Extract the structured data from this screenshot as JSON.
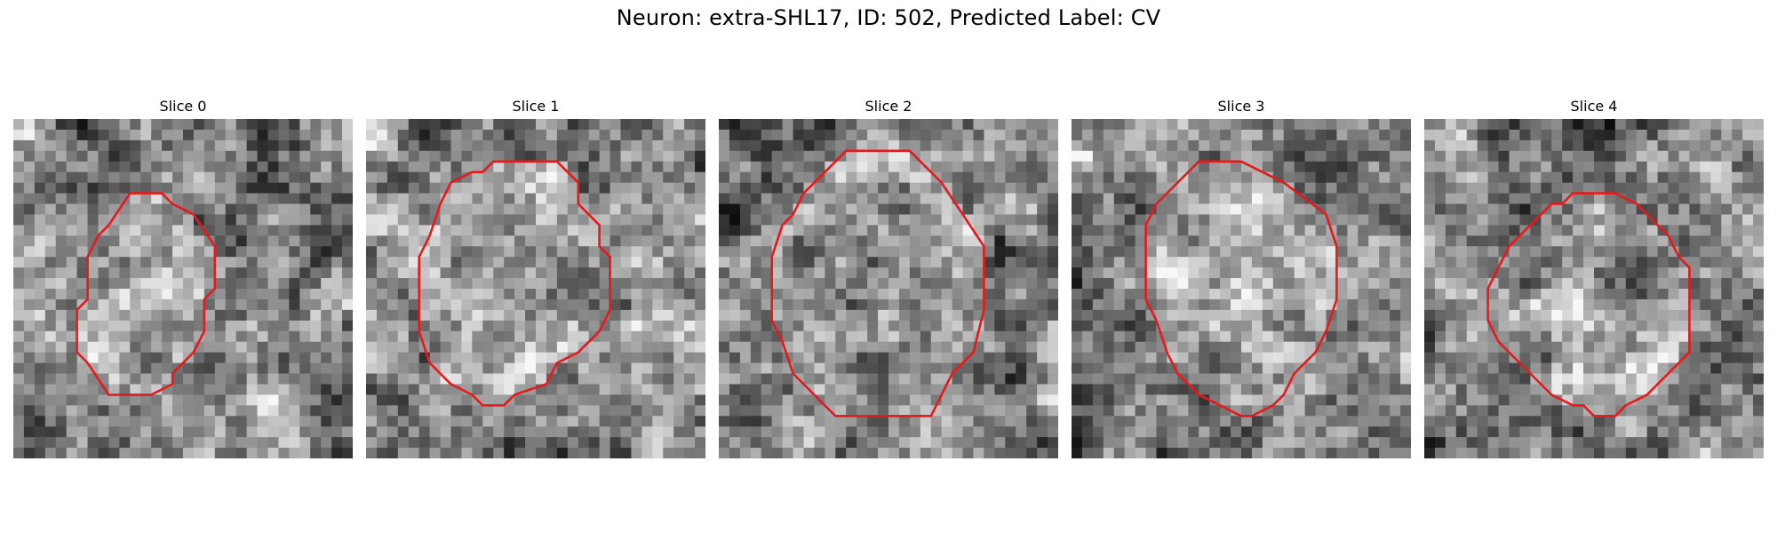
{
  "figure": {
    "title": "Neuron: extra-SHL17, ID: 502, Predicted Label: CV"
  },
  "colors": {
    "contour": "#e41a1c",
    "background": "#ffffff"
  },
  "slices": [
    {
      "label": "Slice 0",
      "grid": "32x32",
      "contour": [
        [
          11,
          7
        ],
        [
          14,
          7
        ],
        [
          15,
          8
        ],
        [
          17,
          9
        ],
        [
          19,
          12
        ],
        [
          19,
          16
        ],
        [
          18,
          17
        ],
        [
          18,
          20
        ],
        [
          17,
          22
        ],
        [
          15,
          24
        ],
        [
          15,
          25
        ],
        [
          13,
          26
        ],
        [
          9,
          26
        ],
        [
          7,
          23
        ],
        [
          6,
          22
        ],
        [
          6,
          19
        ],
        [
          6,
          18
        ],
        [
          7,
          17
        ],
        [
          7,
          13
        ],
        [
          8,
          11
        ],
        [
          9,
          10
        ]
      ]
    },
    {
      "label": "Slice 1",
      "grid": "32x32",
      "contour": [
        [
          12,
          4
        ],
        [
          18,
          4
        ],
        [
          20,
          6
        ],
        [
          20,
          8
        ],
        [
          22,
          10
        ],
        [
          22,
          12
        ],
        [
          23,
          13
        ],
        [
          23,
          18
        ],
        [
          22,
          20
        ],
        [
          20,
          22
        ],
        [
          18,
          23
        ],
        [
          17,
          25
        ],
        [
          14,
          26
        ],
        [
          13,
          27
        ],
        [
          11,
          27
        ],
        [
          10,
          26
        ],
        [
          8,
          25
        ],
        [
          6,
          23
        ],
        [
          5,
          20
        ],
        [
          5,
          13
        ],
        [
          6,
          11
        ],
        [
          7,
          8
        ],
        [
          8,
          6
        ],
        [
          10,
          5
        ],
        [
          11,
          5
        ]
      ]
    },
    {
      "label": "Slice 2",
      "grid": "32x32",
      "contour": [
        [
          12,
          3
        ],
        [
          18,
          3
        ],
        [
          20,
          5
        ],
        [
          21,
          6
        ],
        [
          23,
          9
        ],
        [
          25,
          12
        ],
        [
          25,
          18
        ],
        [
          24,
          22
        ],
        [
          22,
          24
        ],
        [
          21,
          26
        ],
        [
          20,
          28
        ],
        [
          11,
          28
        ],
        [
          9,
          26
        ],
        [
          7,
          24
        ],
        [
          6,
          21
        ],
        [
          5,
          19
        ],
        [
          5,
          13
        ],
        [
          6,
          10
        ],
        [
          7,
          9
        ],
        [
          8,
          7
        ],
        [
          10,
          5
        ]
      ]
    },
    {
      "label": "Slice 3",
      "grid": "32x32",
      "contour": [
        [
          12,
          4
        ],
        [
          16,
          4
        ],
        [
          18,
          5
        ],
        [
          20,
          6
        ],
        [
          24,
          9
        ],
        [
          25,
          12
        ],
        [
          25,
          17
        ],
        [
          24,
          20
        ],
        [
          23,
          22
        ],
        [
          21,
          24
        ],
        [
          20,
          26
        ],
        [
          19,
          27
        ],
        [
          17,
          28
        ],
        [
          16,
          28
        ],
        [
          14,
          27
        ],
        [
          12,
          26
        ],
        [
          10,
          24
        ],
        [
          9,
          22
        ],
        [
          8,
          19
        ],
        [
          7,
          17
        ],
        [
          7,
          10
        ],
        [
          8,
          8
        ],
        [
          11,
          5
        ]
      ]
    },
    {
      "label": "Slice 4",
      "grid": "32x32",
      "contour": [
        [
          14,
          7
        ],
        [
          18,
          7
        ],
        [
          20,
          8
        ],
        [
          21,
          9
        ],
        [
          22,
          10
        ],
        [
          23,
          11
        ],
        [
          24,
          13
        ],
        [
          25,
          14
        ],
        [
          25,
          16
        ],
        [
          25,
          22
        ],
        [
          24,
          23
        ],
        [
          23,
          24
        ],
        [
          22,
          25
        ],
        [
          21,
          26
        ],
        [
          19,
          27
        ],
        [
          18,
          28
        ],
        [
          16,
          28
        ],
        [
          15,
          27
        ],
        [
          14,
          27
        ],
        [
          12,
          26
        ],
        [
          11,
          25
        ],
        [
          10,
          24
        ],
        [
          9,
          23
        ],
        [
          7,
          21
        ],
        [
          6,
          19
        ],
        [
          6,
          16
        ],
        [
          7,
          14
        ],
        [
          8,
          12
        ],
        [
          10,
          10
        ],
        [
          12,
          8
        ],
        [
          13,
          8
        ]
      ]
    }
  ]
}
